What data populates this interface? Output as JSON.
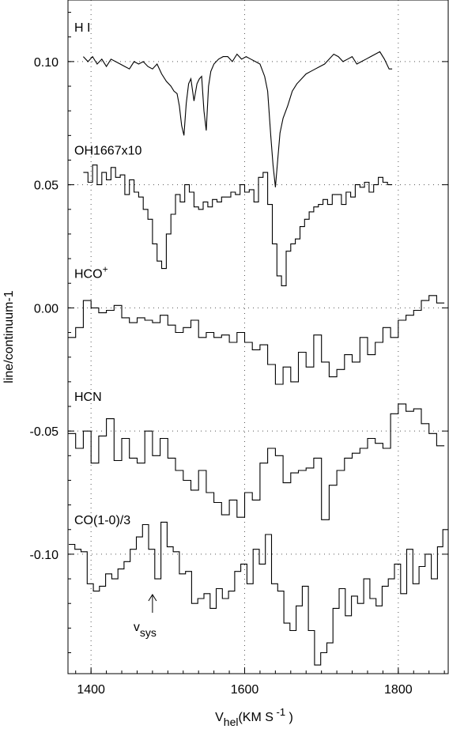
{
  "chart_data": {
    "type": "line",
    "xlabel": "V",
    "xlabel_sub": "hel",
    "xlabel_unit": "(KM S",
    "xlabel_unit_sup": "-1",
    "xlabel_unit_end": ")",
    "ylabel": "line/continuum-1",
    "xlim": [
      1370,
      1865
    ],
    "ylim": [
      -0.1485,
      0.125
    ],
    "x_ticks": [
      1400,
      1600,
      1800
    ],
    "y_ticks": [
      0.1,
      0.05,
      0.0,
      -0.05,
      -0.1
    ],
    "y_tick_labels": [
      "0.10",
      "0.05",
      "0.00",
      "-0.05",
      "-0.10"
    ],
    "x_tick_labels": [
      "1400",
      "1600",
      "1800"
    ],
    "grid": "dotted at tick positions",
    "annotation": {
      "label": "v",
      "sub": "sys",
      "x": 1480
    },
    "series": [
      {
        "name": "H I",
        "label_prefix": "H I",
        "style": "line",
        "offset": 0.1,
        "x": [
          1390,
          1396,
          1402,
          1408,
          1414,
          1420,
          1426,
          1432,
          1438,
          1444,
          1450,
          1456,
          1462,
          1468,
          1474,
          1480,
          1486,
          1492,
          1498,
          1504,
          1508,
          1512,
          1515,
          1518,
          1521,
          1524,
          1527,
          1530,
          1534,
          1538,
          1541,
          1544,
          1547,
          1550,
          1553,
          1556,
          1560,
          1566,
          1572,
          1578,
          1584,
          1590,
          1596,
          1602,
          1608,
          1614,
          1620,
          1626,
          1630,
          1634,
          1637,
          1640,
          1643,
          1646,
          1650,
          1656,
          1662,
          1668,
          1674,
          1680,
          1686,
          1692,
          1698,
          1704,
          1710,
          1716,
          1722,
          1728,
          1734,
          1740,
          1746,
          1752,
          1758,
          1764,
          1770,
          1776,
          1782,
          1788,
          1792
        ],
        "y": [
          0.102,
          0.1,
          0.102,
          0.099,
          0.101,
          0.098,
          0.101,
          0.1,
          0.099,
          0.098,
          0.097,
          0.1,
          0.099,
          0.1,
          0.098,
          0.097,
          0.099,
          0.095,
          0.092,
          0.09,
          0.088,
          0.087,
          0.082,
          0.074,
          0.07,
          0.083,
          0.091,
          0.093,
          0.084,
          0.091,
          0.093,
          0.094,
          0.08,
          0.072,
          0.09,
          0.096,
          0.099,
          0.101,
          0.102,
          0.102,
          0.1,
          0.103,
          0.101,
          0.102,
          0.101,
          0.1,
          0.099,
          0.094,
          0.088,
          0.07,
          0.058,
          0.049,
          0.06,
          0.071,
          0.077,
          0.082,
          0.088,
          0.091,
          0.093,
          0.095,
          0.096,
          0.097,
          0.098,
          0.099,
          0.101,
          0.103,
          0.102,
          0.1,
          0.101,
          0.102,
          0.099,
          0.1,
          0.101,
          0.102,
          0.103,
          0.104,
          0.101,
          0.097,
          0.097
        ]
      },
      {
        "name": "OH1667x10",
        "label_prefix": "OH1667x10",
        "style": "step",
        "offset": 0.05,
        "x": [
          1393,
          1399,
          1405,
          1411,
          1417,
          1423,
          1429,
          1435,
          1441,
          1447,
          1453,
          1459,
          1465,
          1471,
          1477,
          1483,
          1489,
          1495,
          1501,
          1507,
          1513,
          1519,
          1525,
          1531,
          1537,
          1543,
          1549,
          1555,
          1561,
          1567,
          1573,
          1579,
          1585,
          1591,
          1597,
          1603,
          1609,
          1615,
          1621,
          1627,
          1633,
          1639,
          1645,
          1651,
          1657,
          1663,
          1669,
          1675,
          1681,
          1687,
          1693,
          1699,
          1705,
          1711,
          1717,
          1723,
          1729,
          1735,
          1741,
          1747,
          1753,
          1759,
          1765,
          1771,
          1777,
          1783,
          1789
        ],
        "y": [
          0.055,
          0.051,
          0.058,
          0.05,
          0.055,
          0.052,
          0.057,
          0.053,
          0.054,
          0.046,
          0.052,
          0.047,
          0.045,
          0.04,
          0.036,
          0.026,
          0.019,
          0.016,
          0.03,
          0.038,
          0.046,
          0.043,
          0.05,
          0.047,
          0.041,
          0.04,
          0.043,
          0.041,
          0.044,
          0.043,
          0.045,
          0.045,
          0.047,
          0.046,
          0.05,
          0.047,
          0.048,
          0.043,
          0.053,
          0.055,
          0.042,
          0.026,
          0.013,
          0.009,
          0.023,
          0.026,
          0.028,
          0.033,
          0.036,
          0.039,
          0.041,
          0.042,
          0.044,
          0.042,
          0.046,
          0.046,
          0.042,
          0.047,
          0.045,
          0.05,
          0.049,
          0.051,
          0.047,
          0.05,
          0.053,
          0.051,
          0.05
        ]
      },
      {
        "name": "HCO+",
        "label_prefix": "HCO",
        "label_sup": "+",
        "style": "step",
        "offset": 0.0,
        "x": [
          1375,
          1385,
          1395,
          1405,
          1415,
          1425,
          1435,
          1445,
          1455,
          1465,
          1475,
          1485,
          1495,
          1505,
          1515,
          1525,
          1535,
          1545,
          1555,
          1565,
          1575,
          1585,
          1595,
          1605,
          1615,
          1625,
          1635,
          1645,
          1655,
          1665,
          1675,
          1685,
          1695,
          1705,
          1715,
          1725,
          1735,
          1745,
          1755,
          1765,
          1775,
          1785,
          1795,
          1805,
          1815,
          1825,
          1835,
          1845,
          1855
        ],
        "y": [
          -0.012,
          -0.008,
          0.003,
          0.0,
          -0.002,
          -0.001,
          0.001,
          -0.004,
          -0.006,
          -0.004,
          -0.005,
          -0.006,
          -0.003,
          -0.007,
          -0.01,
          -0.008,
          -0.005,
          -0.012,
          -0.01,
          -0.012,
          -0.011,
          -0.014,
          -0.01,
          -0.014,
          -0.017,
          -0.015,
          -0.023,
          -0.031,
          -0.024,
          -0.03,
          -0.018,
          -0.024,
          -0.011,
          -0.022,
          -0.028,
          -0.025,
          -0.019,
          -0.022,
          -0.012,
          -0.019,
          -0.014,
          -0.008,
          -0.012,
          -0.005,
          -0.003,
          -0.001,
          0.003,
          0.005,
          0.002
        ]
      },
      {
        "name": "HCN",
        "label_prefix": "HCN",
        "style": "step",
        "offset": -0.05,
        "x": [
          1375,
          1385,
          1395,
          1405,
          1415,
          1425,
          1435,
          1445,
          1455,
          1465,
          1475,
          1485,
          1495,
          1505,
          1515,
          1525,
          1535,
          1545,
          1555,
          1565,
          1575,
          1585,
          1595,
          1605,
          1615,
          1625,
          1635,
          1645,
          1655,
          1665,
          1675,
          1685,
          1695,
          1705,
          1715,
          1725,
          1735,
          1745,
          1755,
          1765,
          1775,
          1785,
          1795,
          1805,
          1815,
          1825,
          1835,
          1845,
          1855
        ],
        "y": [
          -0.051,
          -0.057,
          -0.05,
          -0.063,
          -0.052,
          -0.045,
          -0.062,
          -0.053,
          -0.061,
          -0.063,
          -0.05,
          -0.06,
          -0.053,
          -0.061,
          -0.066,
          -0.07,
          -0.074,
          -0.066,
          -0.075,
          -0.079,
          -0.084,
          -0.078,
          -0.085,
          -0.075,
          -0.078,
          -0.063,
          -0.057,
          -0.06,
          -0.071,
          -0.067,
          -0.066,
          -0.065,
          -0.061,
          -0.086,
          -0.072,
          -0.066,
          -0.061,
          -0.059,
          -0.057,
          -0.053,
          -0.055,
          -0.057,
          -0.043,
          -0.039,
          -0.042,
          -0.041,
          -0.047,
          -0.051,
          -0.056
        ]
      },
      {
        "name": "CO(1-0)/3",
        "label_prefix": "CO(1-0)/3",
        "style": "step",
        "offset": -0.1,
        "x": [
          1375,
          1383,
          1391,
          1399,
          1407,
          1415,
          1423,
          1431,
          1439,
          1447,
          1455,
          1463,
          1471,
          1479,
          1487,
          1495,
          1503,
          1511,
          1519,
          1527,
          1535,
          1543,
          1551,
          1559,
          1567,
          1575,
          1583,
          1591,
          1599,
          1607,
          1615,
          1623,
          1631,
          1639,
          1647,
          1655,
          1663,
          1671,
          1679,
          1687,
          1695,
          1703,
          1711,
          1719,
          1727,
          1735,
          1743,
          1751,
          1759,
          1767,
          1775,
          1783,
          1791,
          1799,
          1807,
          1815,
          1823,
          1831,
          1839,
          1847,
          1855,
          1861
        ],
        "y": [
          -0.096,
          -0.098,
          -0.099,
          -0.112,
          -0.115,
          -0.113,
          -0.108,
          -0.11,
          -0.106,
          -0.103,
          -0.098,
          -0.093,
          -0.088,
          -0.098,
          -0.11,
          -0.087,
          -0.097,
          -0.099,
          -0.108,
          -0.107,
          -0.12,
          -0.118,
          -0.116,
          -0.122,
          -0.114,
          -0.118,
          -0.115,
          -0.107,
          -0.104,
          -0.112,
          -0.098,
          -0.104,
          -0.092,
          -0.112,
          -0.115,
          -0.128,
          -0.131,
          -0.121,
          -0.113,
          -0.131,
          -0.145,
          -0.14,
          -0.136,
          -0.122,
          -0.114,
          -0.125,
          -0.117,
          -0.12,
          -0.11,
          -0.118,
          -0.121,
          -0.113,
          -0.11,
          -0.104,
          -0.116,
          -0.098,
          -0.112,
          -0.105,
          -0.1,
          -0.11,
          -0.097,
          -0.09
        ]
      }
    ]
  }
}
